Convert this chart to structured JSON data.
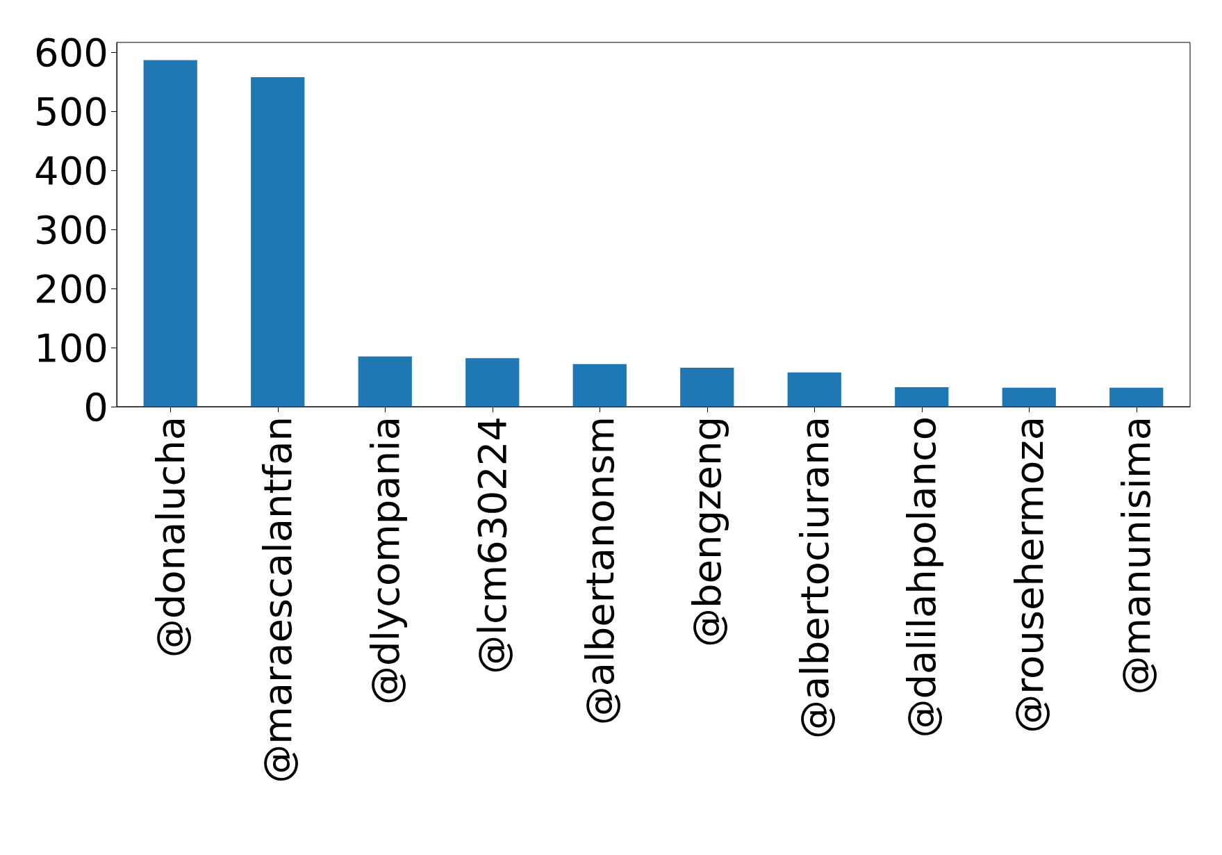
{
  "chart_data": {
    "type": "bar",
    "categories": [
      "@donalucha",
      "@maraescalantfan",
      "@dlycompania",
      "@lcm630224",
      "@albertanonsm",
      "@bengzeng",
      "@albertociurana",
      "@dalilahpolanco",
      "@rousehermoza",
      "@manunisima"
    ],
    "values": [
      587,
      558,
      85,
      82,
      72,
      66,
      58,
      33,
      32,
      32
    ],
    "color": "#1f77b4",
    "ylim": [
      0,
      617
    ],
    "yticks": [
      0,
      100,
      200,
      300,
      400,
      500,
      600
    ],
    "grid": false
  }
}
